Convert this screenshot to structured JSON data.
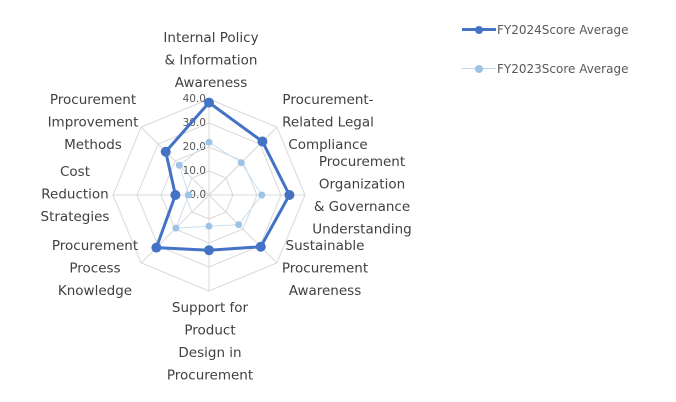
{
  "chart_data": {
    "type": "radar",
    "categories": [
      "Internal Policy & Information Awareness",
      "Procurement-Related Legal Compliance",
      "Procurement Organization & Governance Understanding",
      "Sustainable Procurement Awareness",
      "Support for Product Design in Procurement",
      "Procurement Process Knowledge",
      "Cost Reduction Strategies",
      "Procurement Improvement Methods"
    ],
    "category_lines": [
      [
        "Internal Policy",
        "& Information",
        "Awareness"
      ],
      [
        "Procurement-",
        "Related Legal",
        "Compliance"
      ],
      [
        "Procurement",
        "Organization",
        "& Governance",
        "Understanding"
      ],
      [
        "Sustainable",
        "Procurement",
        "Awareness"
      ],
      [
        "Support for",
        "Product",
        "Design in",
        "Procurement"
      ],
      [
        "Procurement",
        "Process",
        "Knowledge"
      ],
      [
        "Cost",
        "Reduction",
        "Strategies"
      ],
      [
        "Procurement",
        "Improvement",
        "Methods"
      ]
    ],
    "ticks": [
      "0.0",
      "10.0",
      "20.0",
      "30.0",
      "40.0"
    ],
    "rlim": [
      0,
      40
    ],
    "series": [
      {
        "name": "FY2024Score Average",
        "values": [
          38.5,
          31.5,
          33.5,
          30.5,
          23.0,
          31.0,
          14.0,
          25.5
        ],
        "color": "#4472c4"
      },
      {
        "name": "FY2023Score Average",
        "values": [
          22.0,
          19.0,
          22.0,
          17.5,
          13.0,
          19.5,
          8.5,
          17.5
        ],
        "color": "#9dc3e6"
      }
    ],
    "legend": "top-right",
    "grid": true
  }
}
